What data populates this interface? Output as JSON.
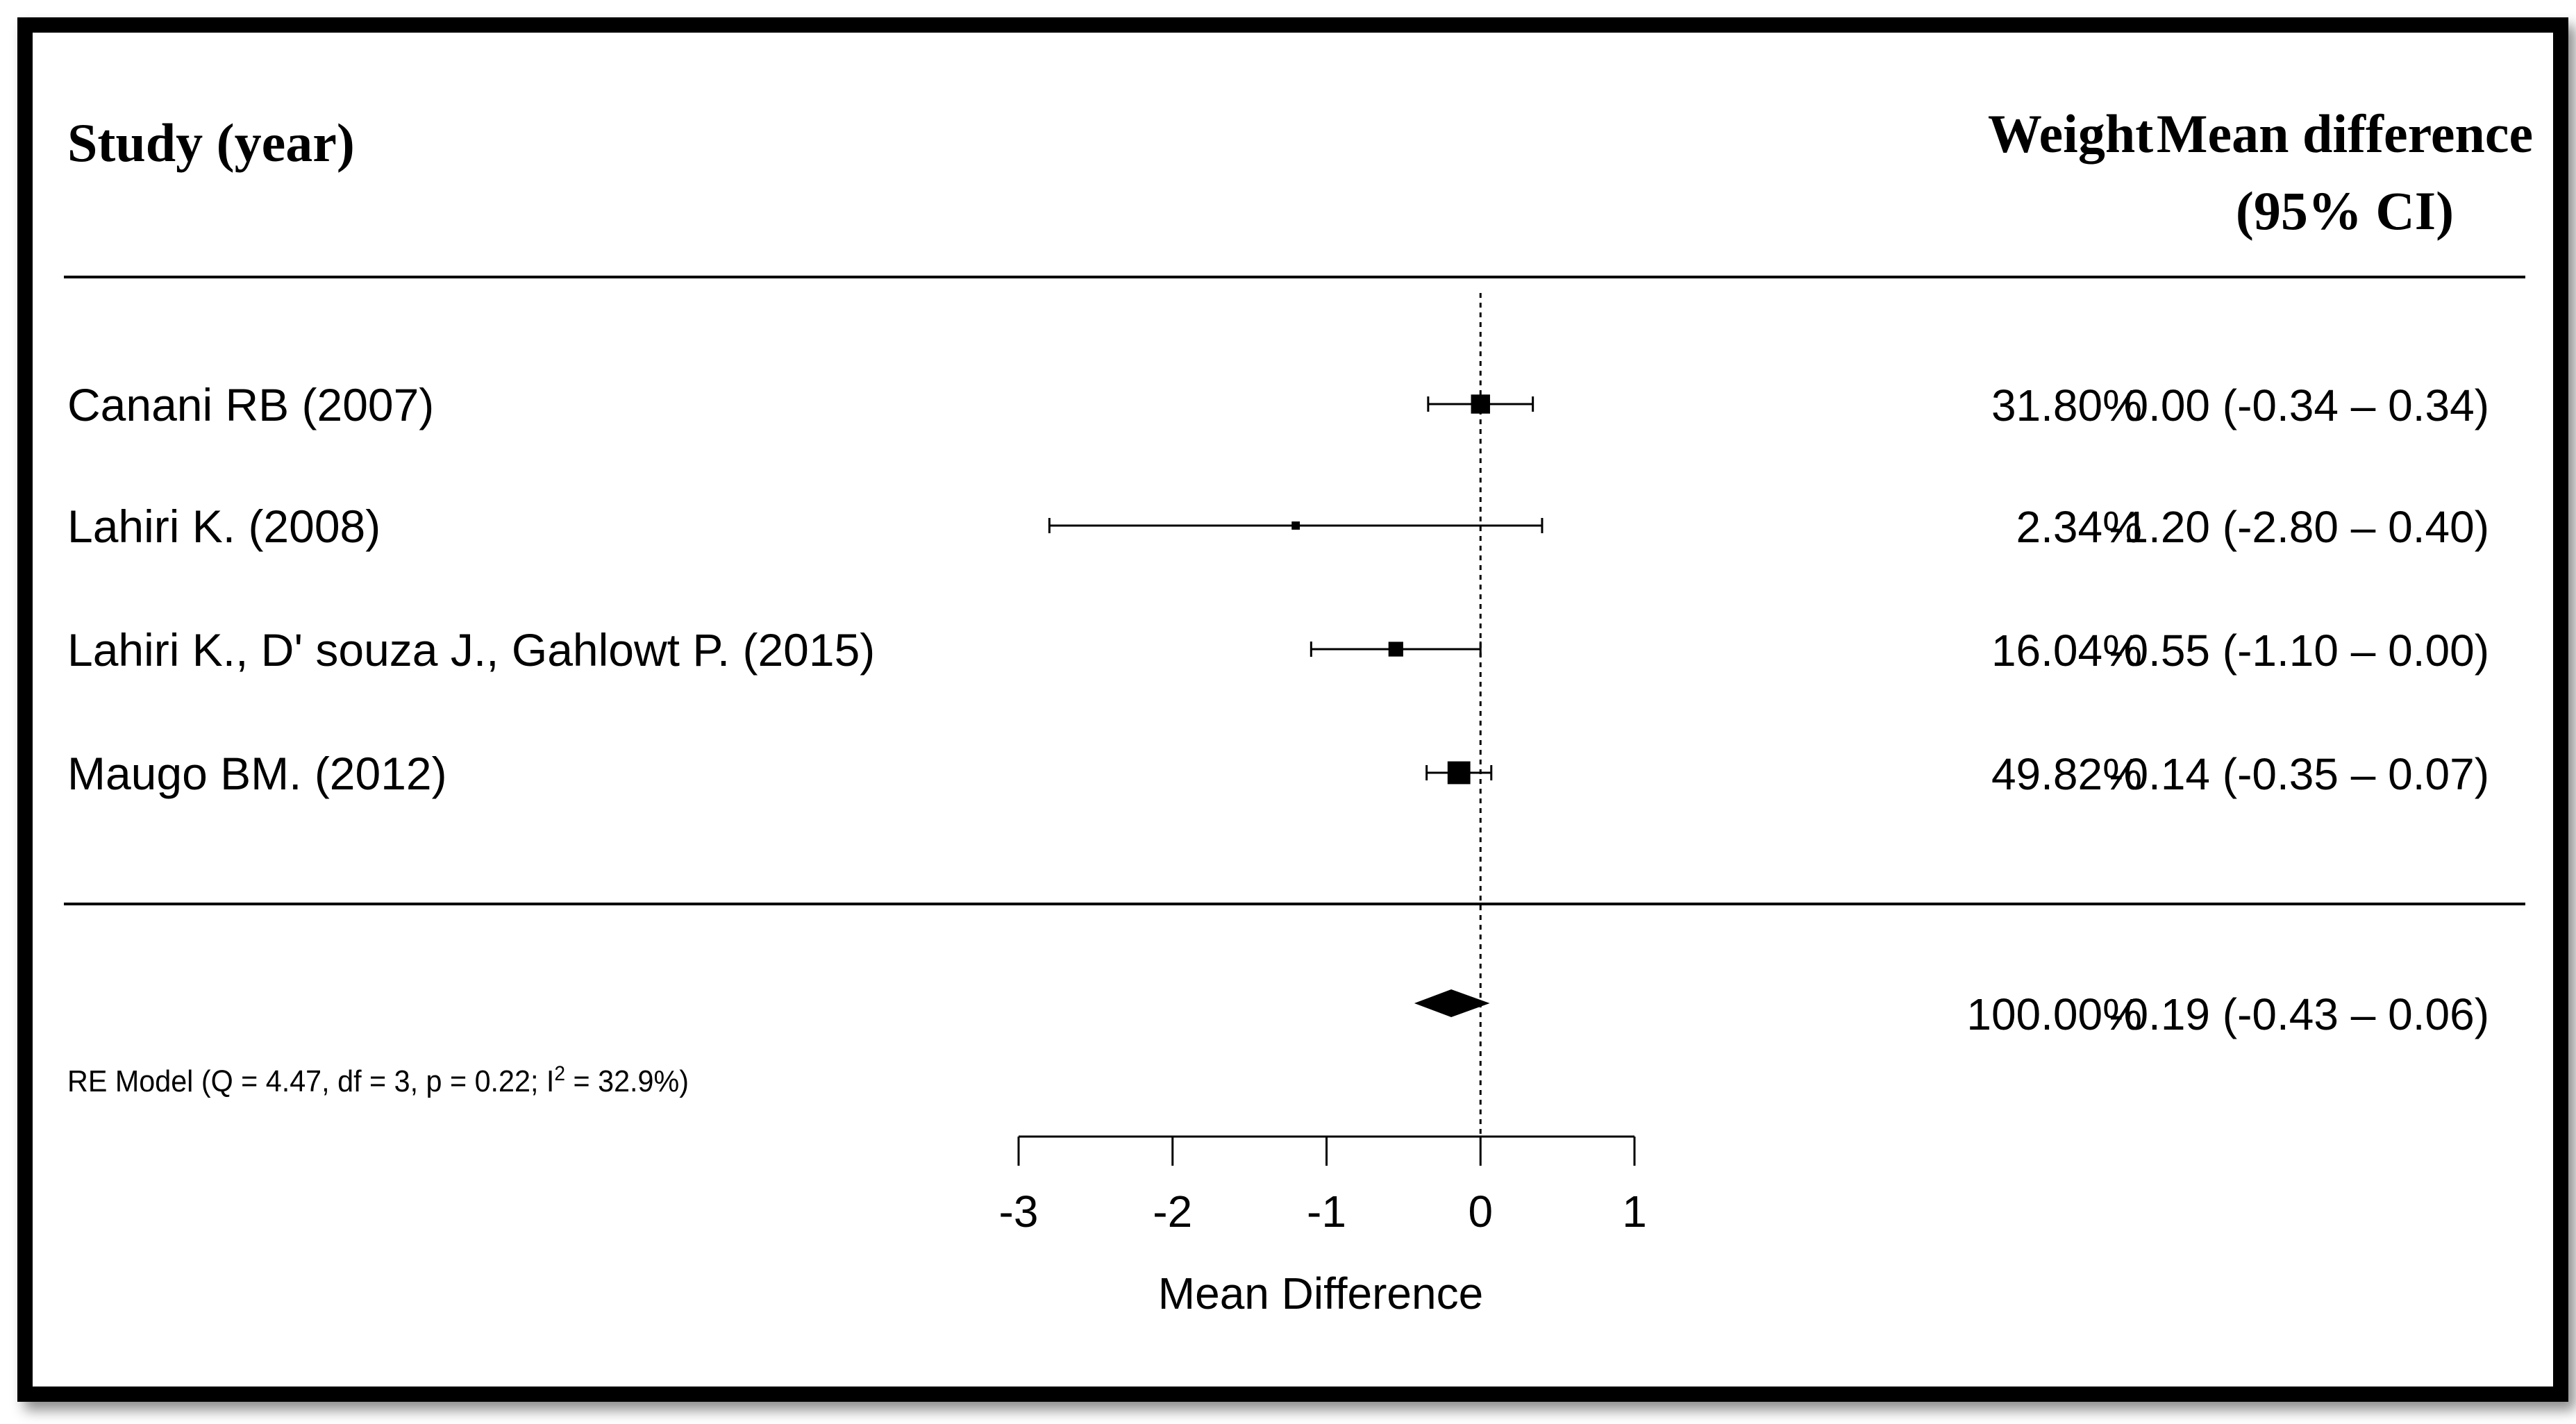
{
  "header": {
    "study_label": "Study (year)",
    "weight_label": "Weight",
    "md_label_line1": "Mean difference",
    "md_label_line2": "(95% CI)"
  },
  "chart_data": {
    "type": "forest",
    "xlabel": "Mean Difference",
    "xlim": [
      -3,
      1
    ],
    "xticks": [
      -3,
      -2,
      -1,
      0,
      1
    ],
    "xtick_labels": [
      "-3",
      "-2",
      "-1",
      "0",
      "1"
    ],
    "reference_line": 0,
    "studies": [
      {
        "label": "Canani RB (2007)",
        "estimate": 0.0,
        "lower": -0.34,
        "upper": 0.34,
        "weight": 31.8,
        "weight_text": "31.80%",
        "ci_text": "0.00 (-0.34 – 0.34)"
      },
      {
        "label": "Lahiri K. (2008)",
        "estimate": -1.2,
        "lower": -2.8,
        "upper": 0.4,
        "weight": 2.34,
        "weight_text": "2.34%",
        "ci_text": "-1.20 (-2.80 – 0.40)"
      },
      {
        "label": "Lahiri K., D' souza J., Gahlowt P. (2015)",
        "estimate": -0.55,
        "lower": -1.1,
        "upper": 0.0,
        "weight": 16.04,
        "weight_text": "16.04%",
        "ci_text": "-0.55 (-1.10 – 0.00)"
      },
      {
        "label": "Maugo BM. (2012)",
        "estimate": -0.14,
        "lower": -0.35,
        "upper": 0.07,
        "weight": 49.82,
        "weight_text": "49.82%",
        "ci_text": "-0.14 (-0.35 – 0.07)"
      }
    ],
    "summary": {
      "label_prefix": "RE Model (Q = 4.47, df = 3, p = 0.22; I",
      "label_sup": "2",
      "label_suffix": " = 32.9%)",
      "estimate": -0.19,
      "lower": -0.43,
      "upper": 0.06,
      "weight_text": "100.00%",
      "ci_text": "-0.19 (-0.43 – 0.06)"
    }
  }
}
